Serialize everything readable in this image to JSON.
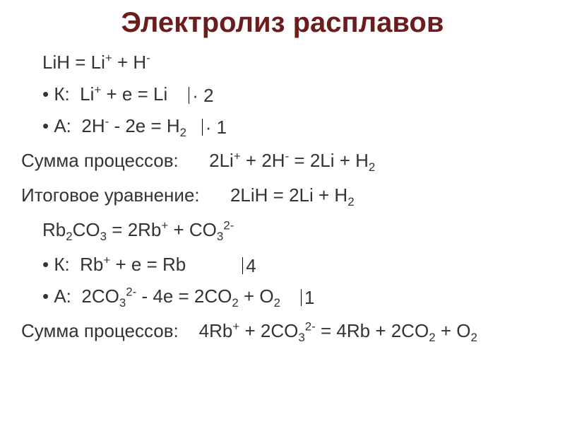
{
  "title": {
    "text": "Электролиз расплавов",
    "color": "#6b1d1d",
    "fontsize": 40
  },
  "body": {
    "color": "#333333",
    "fontsize": 26
  },
  "eq1": {
    "dissociation": "LiH = Li⁺ + H⁻",
    "cathode_label": "К:",
    "cathode_eq": "Li⁺ + e = Li",
    "cathode_mult": "· 2",
    "anode_label": "А:",
    "anode_eq": "2H⁻ - 2e = H₂",
    "anode_mult": "· 1",
    "sum_label": "Сумма процессов:",
    "sum_eq": "2Li⁺ + 2H⁻ = 2Li + H₂",
    "final_label": "Итоговое уравнение:",
    "final_eq": "2LiH = 2Li + H₂"
  },
  "eq2": {
    "dissociation": "Rb₂CO₃ = 2Rb⁺ + CO₃²⁻",
    "cathode_label": "К:",
    "cathode_eq": "Rb⁺ + e = Rb",
    "cathode_mult": "4",
    "anode_label": "А:",
    "anode_eq": "2CO₃²⁻ - 4e = 2CO₂ + O₂",
    "anode_mult": "1",
    "sum_label": "Сумма процессов:",
    "sum_eq": "4Rb⁺ + 2CO₃²⁻ = 4Rb + 2CO₂ + O₂"
  }
}
